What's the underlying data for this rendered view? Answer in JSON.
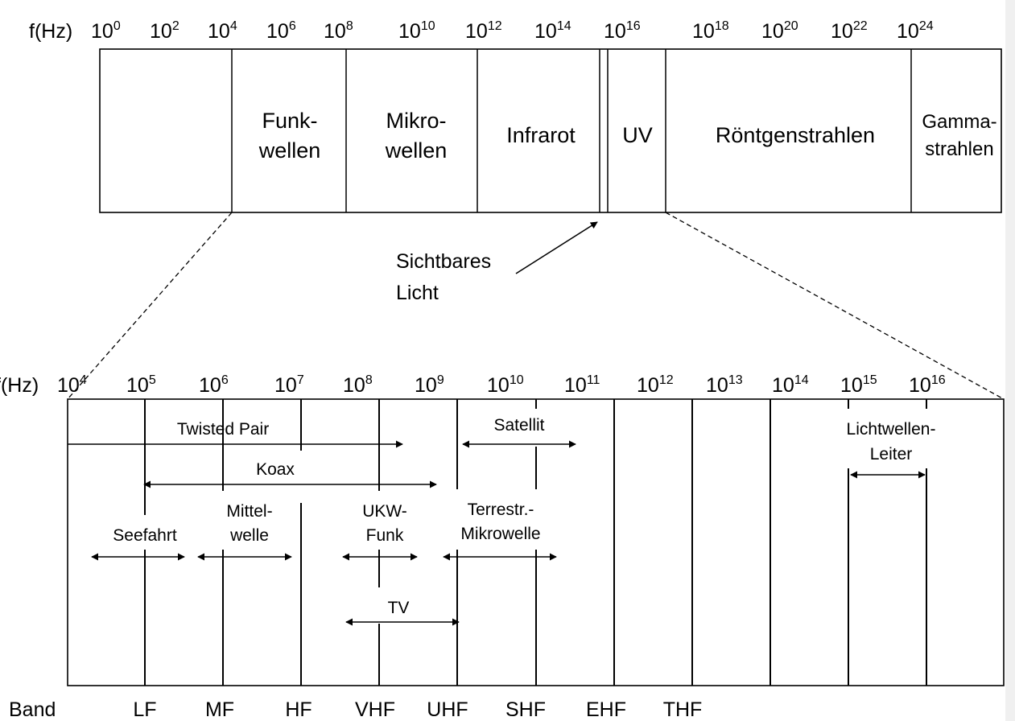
{
  "top": {
    "axis_label": "f(Hz)",
    "ticks": [
      {
        "base": "10",
        "exp": "0"
      },
      {
        "base": "10",
        "exp": "2"
      },
      {
        "base": "10",
        "exp": "4"
      },
      {
        "base": "10",
        "exp": "6"
      },
      {
        "base": "10",
        "exp": "8"
      },
      {
        "base": "10",
        "exp": "10"
      },
      {
        "base": "10",
        "exp": "12"
      },
      {
        "base": "10",
        "exp": "14"
      },
      {
        "base": "10",
        "exp": "16"
      },
      {
        "base": "10",
        "exp": "18"
      },
      {
        "base": "10",
        "exp": "20"
      },
      {
        "base": "10",
        "exp": "22"
      },
      {
        "base": "10",
        "exp": "24"
      }
    ],
    "regions": [
      {
        "lines": [
          "Funk-",
          "wellen"
        ]
      },
      {
        "lines": [
          "Mikro-",
          "wellen"
        ]
      },
      {
        "lines": [
          "Infrarot"
        ]
      },
      {
        "lines": [
          "UV"
        ]
      },
      {
        "lines": [
          "Röntgenstrahlen"
        ]
      },
      {
        "lines": [
          "Gamma-",
          "strahlen"
        ]
      }
    ]
  },
  "visible_light": {
    "lines": [
      "Sichtbares",
      "Licht"
    ]
  },
  "bottom": {
    "axis_label": "f(Hz)",
    "ticks": [
      {
        "base": "10",
        "exp": "4"
      },
      {
        "base": "10",
        "exp": "5"
      },
      {
        "base": "10",
        "exp": "6"
      },
      {
        "base": "10",
        "exp": "7"
      },
      {
        "base": "10",
        "exp": "8"
      },
      {
        "base": "10",
        "exp": "9"
      },
      {
        "base": "10",
        "exp": "10"
      },
      {
        "base": "10",
        "exp": "11"
      },
      {
        "base": "10",
        "exp": "12"
      },
      {
        "base": "10",
        "exp": "13"
      },
      {
        "base": "10",
        "exp": "14"
      },
      {
        "base": "10",
        "exp": "15"
      },
      {
        "base": "10",
        "exp": "16"
      }
    ],
    "media": [
      {
        "lines": [
          "Twisted Pair"
        ]
      },
      {
        "lines": [
          "Koax"
        ]
      },
      {
        "lines": [
          "Satellit"
        ]
      },
      {
        "lines": [
          "Seefahrt"
        ]
      },
      {
        "lines": [
          "Mittel-",
          "welle"
        ]
      },
      {
        "lines": [
          "UKW-",
          "Funk"
        ]
      },
      {
        "lines": [
          "Terrestr.-",
          "Mikrowelle"
        ]
      },
      {
        "lines": [
          "TV"
        ]
      },
      {
        "lines": [
          "Lichtwellen-",
          "Leiter"
        ]
      }
    ],
    "band_label": "Band",
    "bands": [
      "LF",
      "MF",
      "HF",
      "VHF",
      "UHF",
      "SHF",
      "EHF",
      "THF"
    ]
  }
}
